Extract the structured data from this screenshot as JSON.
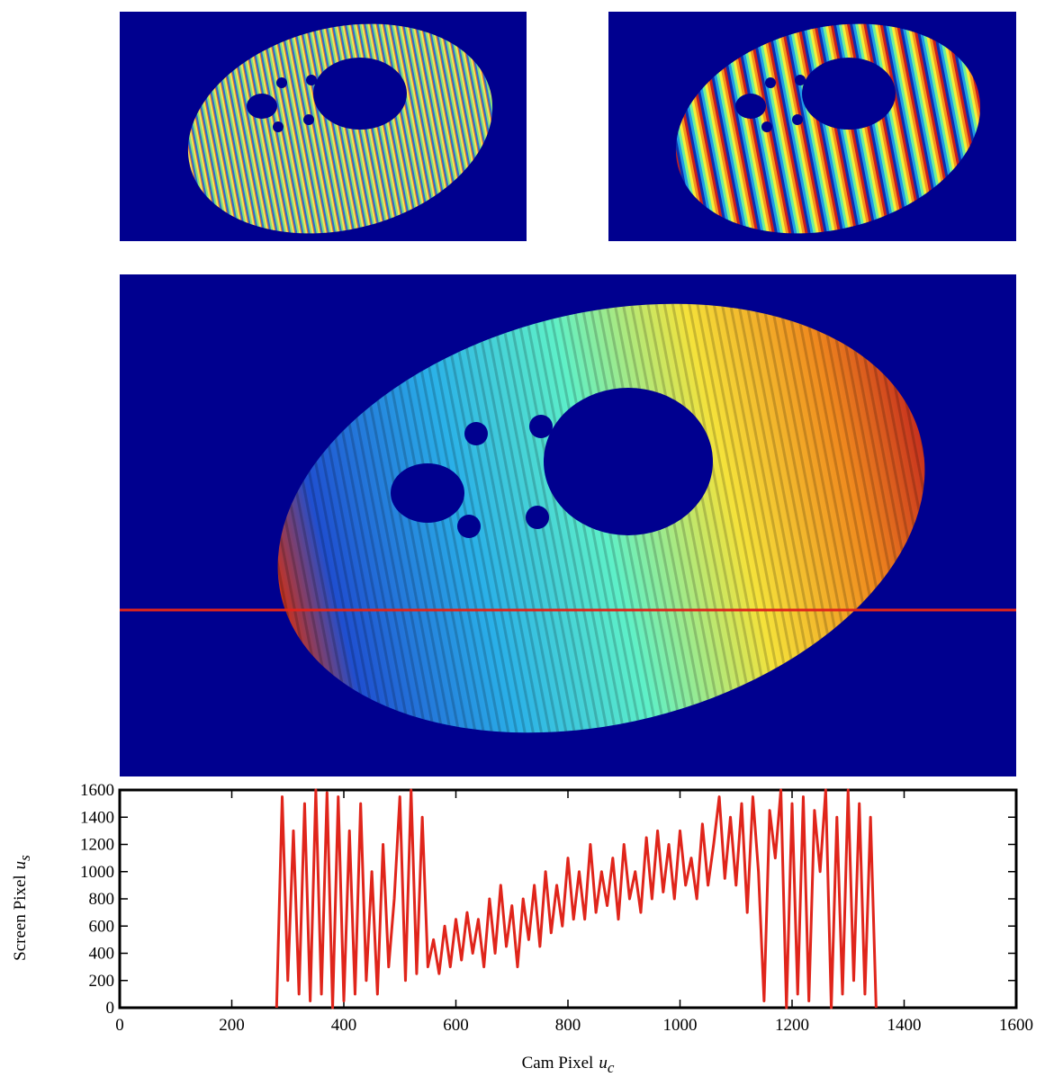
{
  "chart_data": {
    "type": "line",
    "x_label": {
      "text": "Cam Pixel",
      "symbol": "u",
      "subscript": "c"
    },
    "y_label": {
      "text": "Screen Pixel",
      "symbol": "u",
      "subscript": "s"
    },
    "xlim": [
      0,
      1600
    ],
    "ylim": [
      0,
      1600
    ],
    "xticks": [
      0,
      200,
      400,
      600,
      800,
      1000,
      1200,
      1400,
      1600
    ],
    "yticks": [
      0,
      200,
      400,
      600,
      800,
      1000,
      1200,
      1400,
      1600
    ],
    "series": [
      {
        "color": "#e0251b",
        "x": [
          280,
          290,
          300,
          310,
          320,
          330,
          340,
          350,
          360,
          370,
          380,
          390,
          400,
          410,
          420,
          430,
          440,
          450,
          460,
          470,
          480,
          490,
          500,
          510,
          520,
          530,
          540,
          550,
          560,
          570,
          580,
          590,
          600,
          610,
          620,
          630,
          640,
          650,
          660,
          670,
          680,
          690,
          700,
          710,
          720,
          730,
          740,
          750,
          760,
          770,
          780,
          790,
          800,
          810,
          820,
          830,
          840,
          850,
          860,
          870,
          880,
          890,
          900,
          910,
          920,
          930,
          940,
          950,
          960,
          970,
          980,
          990,
          1000,
          1010,
          1020,
          1030,
          1040,
          1050,
          1060,
          1070,
          1080,
          1090,
          1100,
          1110,
          1120,
          1130,
          1140,
          1150,
          1160,
          1170,
          1180,
          1190,
          1200,
          1210,
          1220,
          1230,
          1240,
          1250,
          1260,
          1270,
          1280,
          1290,
          1300,
          1310,
          1320,
          1330,
          1340,
          1350
        ],
        "values": [
          0,
          1550,
          200,
          1300,
          100,
          1500,
          50,
          1600,
          100,
          1580,
          0,
          1550,
          50,
          1300,
          100,
          1500,
          200,
          1000,
          100,
          1200,
          300,
          800,
          1550,
          200,
          1600,
          250,
          1400,
          300,
          500,
          250,
          600,
          300,
          650,
          350,
          700,
          400,
          650,
          300,
          800,
          400,
          900,
          450,
          750,
          300,
          800,
          500,
          900,
          450,
          1000,
          550,
          900,
          600,
          1100,
          650,
          1000,
          650,
          1200,
          700,
          1000,
          750,
          1100,
          650,
          1200,
          800,
          1000,
          700,
          1250,
          800,
          1300,
          850,
          1200,
          800,
          1300,
          900,
          1100,
          800,
          1350,
          900,
          1200,
          1550,
          950,
          1400,
          900,
          1500,
          700,
          1550,
          1000,
          50,
          1450,
          1100,
          1600,
          0,
          1500,
          100,
          1550,
          50,
          1450,
          1000,
          1600,
          0,
          1400,
          100,
          1600,
          200,
          1500,
          100,
          1400,
          0
        ]
      }
    ]
  }
}
